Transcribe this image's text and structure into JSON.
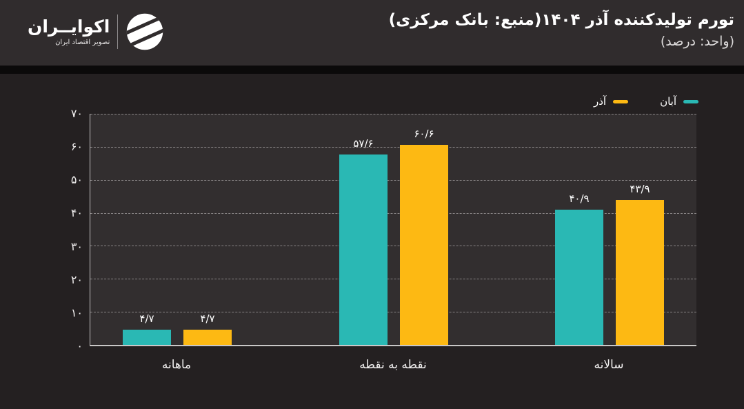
{
  "header": {
    "logo": {
      "name": "اکوایــران",
      "tagline": "تصویر اقتصاد ایران"
    },
    "title": "تورم تولیدکننده آذر ۱۴۰۴(منبع: بانک مرکزی)",
    "subtitle": "(واحد: درصد)"
  },
  "chart_data": {
    "type": "bar",
    "title": "تورم تولیدکننده آذر ۱۴۰۴(منبع: بانک مرکزی)",
    "unit_label": "(واحد: درصد)",
    "direction": "rtl",
    "categories": [
      "ماهانه",
      "نقطه به نقطه",
      "سالانه"
    ],
    "series": [
      {
        "name": "آبان",
        "color": "#2ab8b4",
        "values": [
          4.7,
          57.6,
          40.9
        ],
        "value_labels": [
          "۴/۷",
          "۵۷/۶",
          "۴۰/۹"
        ]
      },
      {
        "name": "آذر",
        "color": "#fdb913",
        "values": [
          4.7,
          60.6,
          43.9
        ],
        "value_labels": [
          "۴/۷",
          "۶۰/۶",
          "۴۳/۹"
        ]
      }
    ],
    "ylim": [
      0,
      70
    ],
    "yticks": [
      0,
      10,
      20,
      30,
      40,
      50,
      60,
      70
    ],
    "ytick_labels": [
      "۰",
      "۱۰",
      "۲۰",
      "۳۰",
      "۴۰",
      "۵۰",
      "۶۰",
      "۷۰"
    ],
    "grid": "horizontal-dashed",
    "legend_position": "top-right"
  },
  "colors": {
    "series_aban": "#2ab8b4",
    "series_azar": "#fdb913",
    "header_bg": "#302c2d",
    "body_bg": "#242021",
    "plot_bg": "#322e2f"
  }
}
